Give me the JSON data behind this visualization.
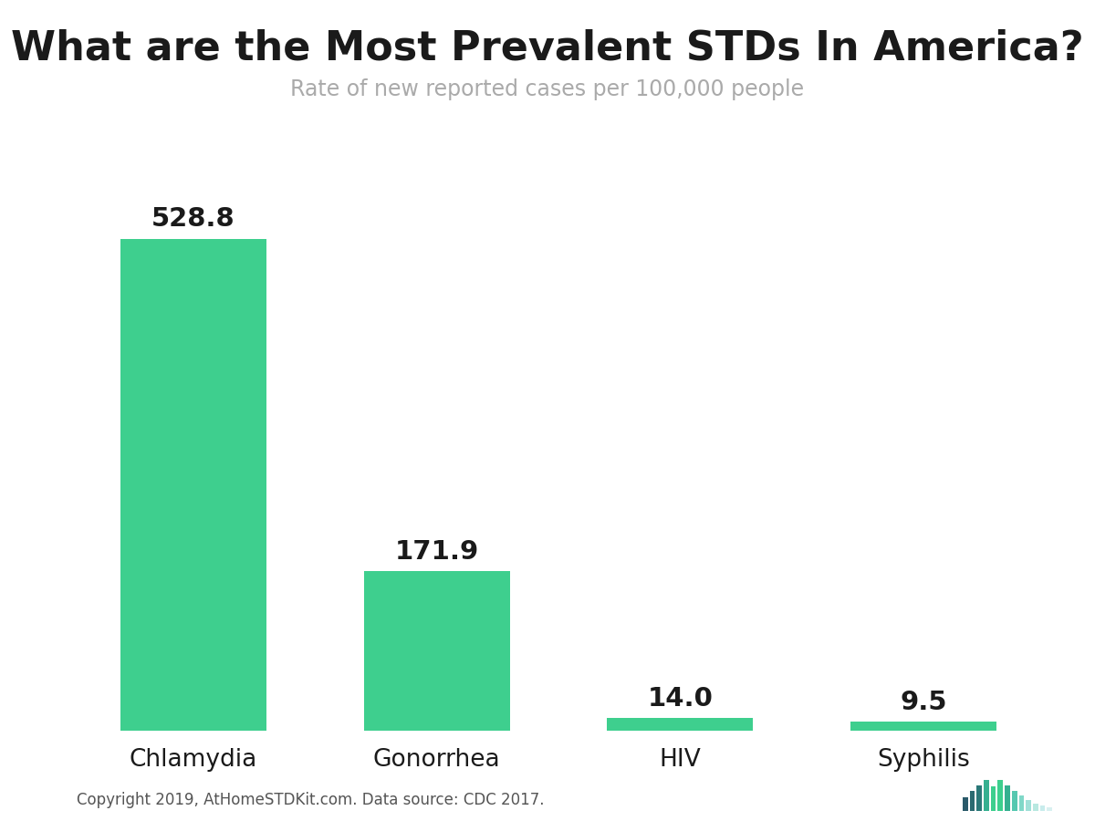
{
  "title": "What are the Most Prevalent STDs In America?",
  "subtitle": "Rate of new reported cases per 100,000 people",
  "categories": [
    "Chlamydia",
    "Gonorrhea",
    "HIV",
    "Syphilis"
  ],
  "values": [
    528.8,
    171.9,
    14.0,
    9.5
  ],
  "bar_color": "#3ecf8e",
  "title_fontsize": 32,
  "subtitle_fontsize": 17,
  "value_fontsize": 21,
  "tick_fontsize": 19,
  "background_color": "#ffffff",
  "title_color": "#1a1a1a",
  "subtitle_color": "#aaaaaa",
  "value_color": "#1a1a1a",
  "tick_color": "#1a1a1a",
  "footer_text": "Copyright 2019, AtHomeSTDKit.com. Data source: CDC 2017.",
  "footer_fontsize": 12,
  "footer_color": "#555555",
  "ylim": [
    0,
    600
  ],
  "logo_heights": [
    0.45,
    0.65,
    0.85,
    1.0,
    0.8,
    1.0,
    0.85,
    0.65,
    0.5,
    0.35,
    0.25,
    0.18,
    0.12
  ],
  "logo_colors": [
    "#2a5a6a",
    "#2a6a70",
    "#2a7878",
    "#35b090",
    "#3dcf8e",
    "#3dcf8e",
    "#35b090",
    "#55c8b0",
    "#80d8c8",
    "#a0e0d8",
    "#b8e8e0",
    "#c8ecec",
    "#d8f0f0"
  ]
}
